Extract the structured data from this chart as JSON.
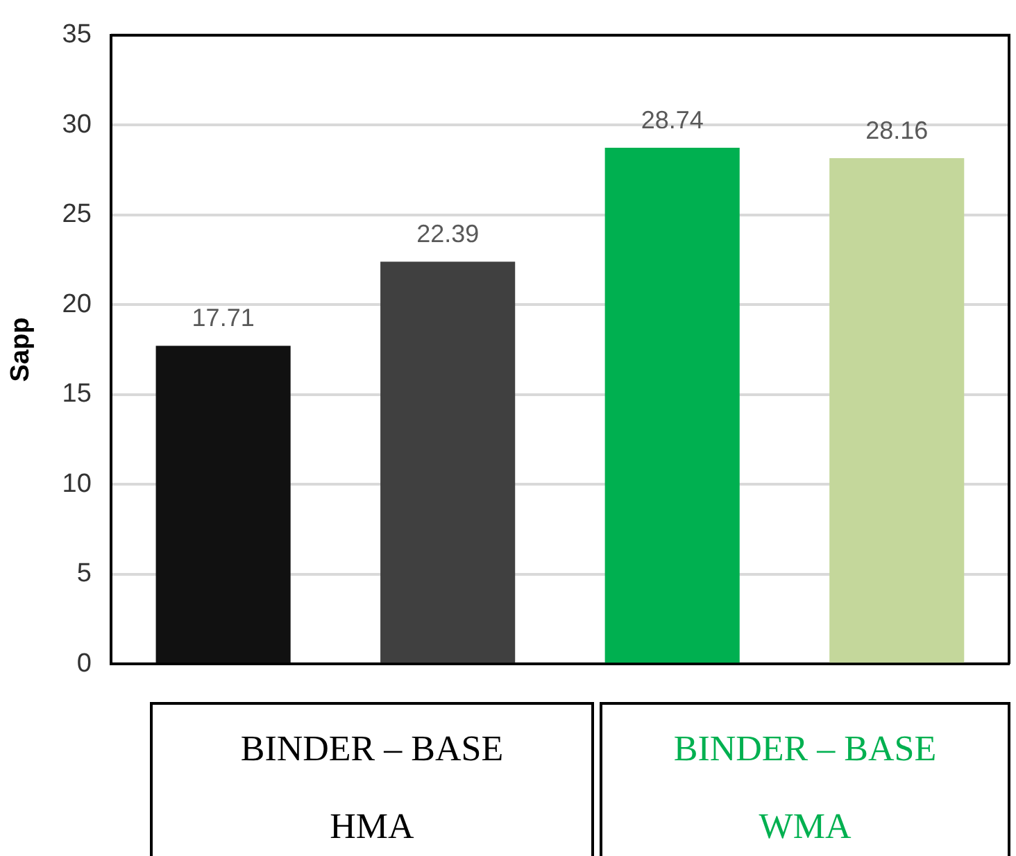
{
  "chart_data": {
    "type": "bar",
    "ylabel": "Sapp",
    "categories": [
      null,
      null,
      null,
      null
    ],
    "values": [
      17.71,
      22.39,
      28.74,
      28.16
    ],
    "colors": [
      "#111111",
      "#404040",
      "#00b050",
      "#c4d79b"
    ],
    "ylim": [
      0,
      35
    ],
    "yticks": [
      0,
      5,
      10,
      15,
      20,
      25,
      30,
      35
    ],
    "grid": "y",
    "legend": false,
    "tick_labels": "y",
    "data_labels": true,
    "annotations": [
      "BINDER – BASE\nHMA",
      "BINDER – BASE\nWMA"
    ]
  }
}
